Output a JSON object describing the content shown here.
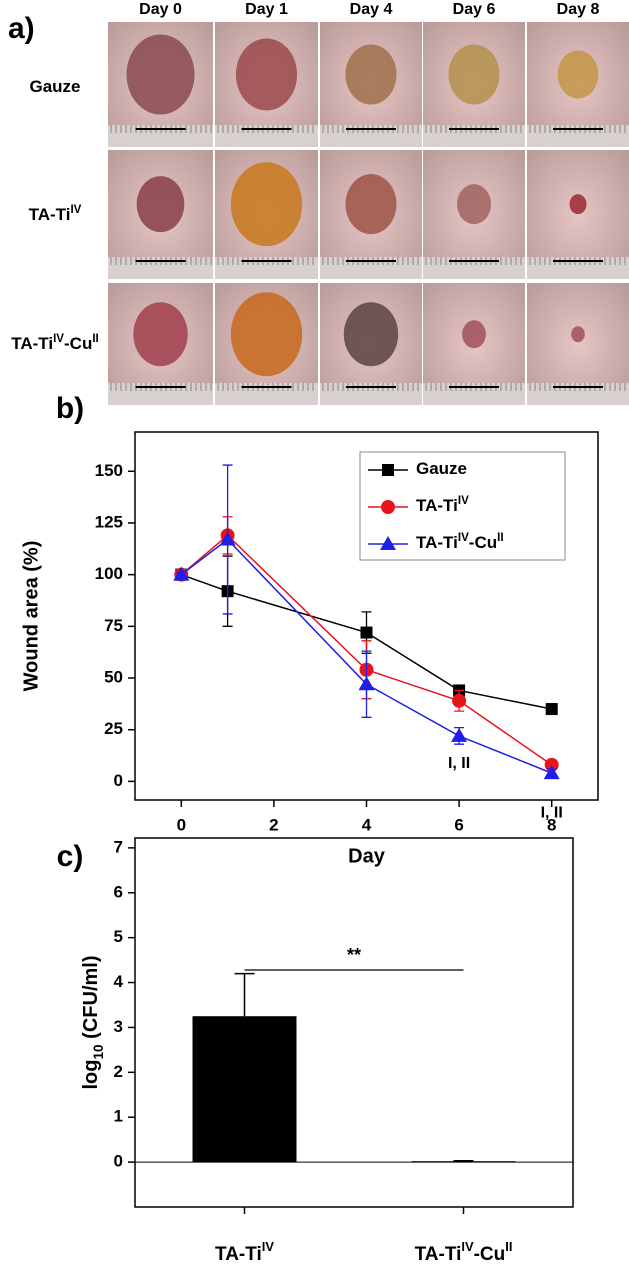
{
  "photo_panel": {
    "label": "a)",
    "days": [
      "Day 0",
      "Day 1",
      "Day 4",
      "Day 6",
      "Day 8"
    ],
    "rows": [
      [
        "Gauze"
      ],
      [
        "TA-Ti",
        {
          "sup": "IV"
        }
      ],
      [
        "TA-Ti",
        {
          "sup": "IV"
        },
        "-Cu",
        {
          "sup": "II"
        }
      ]
    ]
  },
  "chart_data": [
    {
      "type": "line",
      "panel_label": "b)",
      "x_label": "Day",
      "y_label": "Wound area (%)",
      "x": [
        0,
        1,
        4,
        6,
        8
      ],
      "series": [
        {
          "name": [
            "Gauze"
          ],
          "color": "#000000",
          "marker": "square",
          "values": [
            100,
            92,
            72,
            44,
            35
          ],
          "errors": [
            2,
            17,
            10,
            2,
            2
          ]
        },
        {
          "name": [
            "TA-Ti",
            {
              "sup": "IV"
            }
          ],
          "color": "#e8141b",
          "marker": "circle",
          "values": [
            100,
            119,
            54,
            39,
            8
          ],
          "errors": [
            1,
            9,
            14,
            5,
            2
          ]
        },
        {
          "name": [
            "TA-Ti",
            {
              "sup": "IV"
            },
            "-Cu",
            {
              "sup": "II"
            }
          ],
          "color": "#1f1fe8",
          "marker": "triangle",
          "values": [
            100,
            117,
            47,
            22,
            4
          ],
          "errors": [
            1,
            36,
            16,
            4,
            2
          ]
        }
      ],
      "annotations": [
        "I, II",
        "I, II"
      ],
      "xlim": [
        -1,
        9
      ],
      "xticks": [
        0,
        2,
        4,
        6,
        8
      ],
      "ylim": [
        -9,
        169
      ],
      "yticks": [
        0,
        25,
        50,
        75,
        100,
        125,
        150
      ],
      "legend": "upper-right"
    },
    {
      "type": "bar",
      "panel_label": "c)",
      "y_label": [
        "log",
        {
          "sub": "10"
        },
        " (CFU/ml)"
      ],
      "categories": [
        [
          "TA-Ti",
          {
            "sup": "IV"
          }
        ],
        [
          "TA-Ti",
          {
            "sup": "IV"
          },
          "-Cu",
          {
            "sup": "II"
          }
        ]
      ],
      "values": [
        3.25,
        0.02
      ],
      "errors": [
        0.95,
        0.01
      ],
      "color": "#000000",
      "significance": "**",
      "ylim": [
        -1,
        7.22
      ],
      "yticks": [
        0,
        1,
        2,
        3,
        4,
        5,
        6,
        7
      ]
    }
  ]
}
